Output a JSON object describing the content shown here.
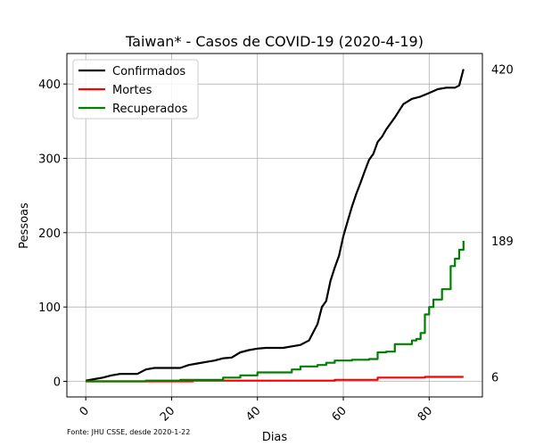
{
  "chart_data": {
    "type": "line",
    "title": "Taiwan* - Casos de COVID-19 (2020-4-19)",
    "xlabel": "Dias",
    "ylabel": "Pessoas",
    "xlim": [
      -4.4,
      92.4
    ],
    "ylim": [
      -21,
      441
    ],
    "xticks": [
      0,
      20,
      40,
      60,
      80
    ],
    "yticks": [
      0,
      100,
      200,
      300,
      400
    ],
    "grid": true,
    "legend_position": "top-left",
    "source": "Fonte: JHU CSSE, desde 2020-1-22",
    "series": [
      {
        "name": "Confirmados",
        "color": "#000000",
        "end_label": "420",
        "x": [
          0,
          2,
          4,
          6,
          8,
          10,
          12,
          14,
          16,
          18,
          20,
          22,
          24,
          26,
          28,
          30,
          32,
          34,
          36,
          38,
          40,
          42,
          44,
          46,
          48,
          50,
          52,
          54,
          55,
          56,
          57,
          58,
          59,
          60,
          61,
          62,
          63,
          64,
          65,
          66,
          67,
          68,
          69,
          70,
          72,
          74,
          76,
          78,
          80,
          82,
          84,
          86,
          87,
          88
        ],
        "y": [
          1,
          3,
          5,
          8,
          10,
          10,
          10,
          16,
          18,
          18,
          18,
          18,
          22,
          24,
          26,
          28,
          31,
          32,
          39,
          42,
          44,
          45,
          45,
          45,
          47,
          49,
          55,
          77,
          100,
          108,
          135,
          153,
          169,
          195,
          215,
          235,
          252,
          267,
          283,
          298,
          306,
          322,
          329,
          339,
          355,
          373,
          380,
          383,
          388,
          393,
          395,
          395,
          398,
          420
        ]
      },
      {
        "name": "Mortes",
        "color": "#ff0000",
        "end_label": "6",
        "x": [
          0,
          20,
          25,
          40,
          57,
          58,
          67,
          68,
          78,
          79,
          88
        ],
        "y": [
          0,
          0,
          1,
          1,
          1,
          2,
          2,
          5,
          5,
          6,
          6
        ],
        "step": true
      },
      {
        "name": "Recuperados",
        "color": "#008000",
        "end_label": "189",
        "x": [
          0,
          14,
          22,
          32,
          36,
          40,
          46,
          48,
          50,
          54,
          56,
          58,
          62,
          66,
          68,
          70,
          72,
          74,
          76,
          77,
          78,
          79,
          80,
          81,
          82,
          83,
          84,
          85,
          86,
          87,
          88
        ],
        "y": [
          0,
          1,
          2,
          5,
          8,
          12,
          12,
          16,
          20,
          22,
          25,
          28,
          29,
          30,
          39,
          40,
          50,
          50,
          55,
          57,
          65,
          90,
          100,
          110,
          110,
          124,
          124,
          155,
          165,
          177,
          189
        ],
        "step": true
      }
    ]
  }
}
